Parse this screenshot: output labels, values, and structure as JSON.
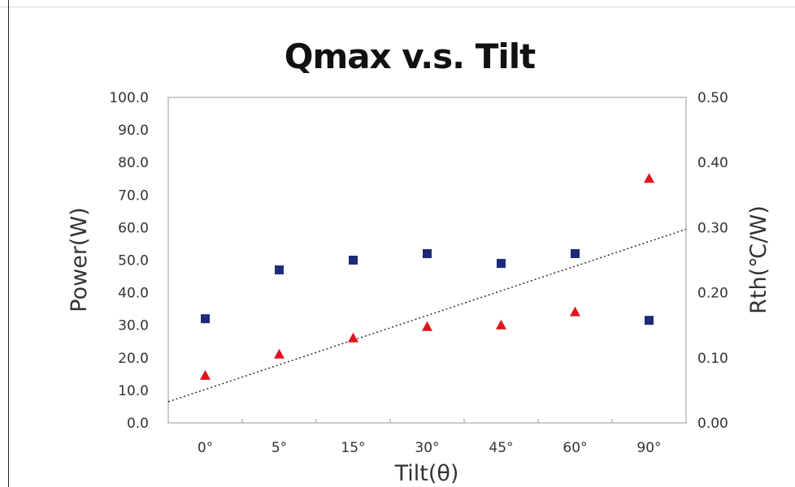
{
  "chart_data": {
    "type": "scatter",
    "title": "Qmax v.s. Tilt",
    "xlabel": "Tilt(θ)",
    "ylabel": "Power(W)",
    "y2label": "Rth(℃/W)",
    "categories": [
      "0°",
      "5°",
      "15°",
      "30°",
      "45°",
      "60°",
      "90°"
    ],
    "ylim": [
      0,
      100
    ],
    "y2lim": [
      0,
      0.5
    ],
    "yticks": [
      "0.0",
      "10.0",
      "20.0",
      "30.0",
      "40.0",
      "50.0",
      "60.0",
      "70.0",
      "80.0",
      "90.0",
      "100.0"
    ],
    "y2ticks": [
      "0.00",
      "0.10",
      "0.20",
      "0.30",
      "0.40",
      "0.50"
    ],
    "grid": false,
    "series": [
      {
        "axis": "left",
        "marker": "square",
        "color": "#1f2a7a",
        "values": [
          32,
          47,
          50,
          52,
          49,
          52,
          31.5
        ]
      },
      {
        "axis": "left",
        "marker": "triangle",
        "color": "#e0141e",
        "values": [
          14.5,
          21,
          26,
          29.5,
          30,
          34,
          75
        ]
      }
    ],
    "trendline": {
      "style": "dotted",
      "color": "#222222",
      "x": [
        -0.5,
        6.5
      ],
      "y": [
        6.5,
        59.5
      ]
    }
  }
}
